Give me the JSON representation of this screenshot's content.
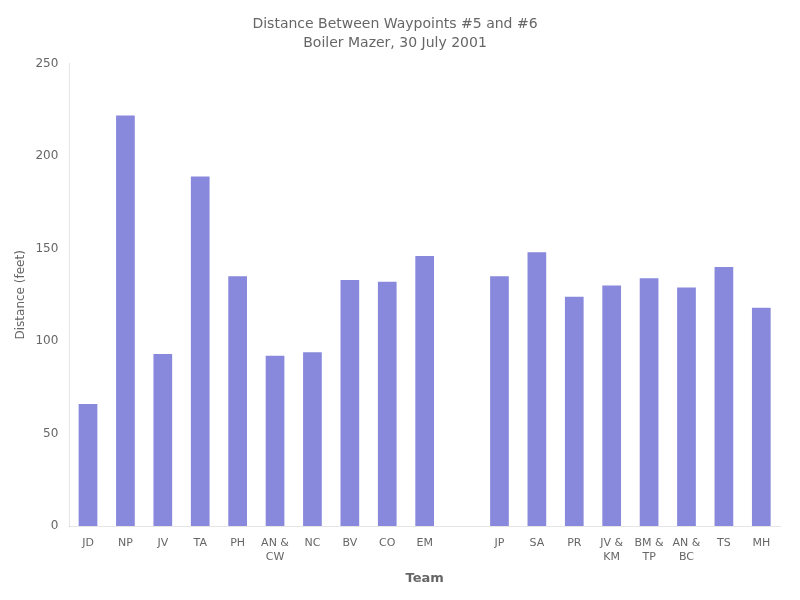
{
  "chart_data": {
    "type": "bar",
    "title": "Distance Between Waypoints #5 and #6",
    "subtitle": "Boiler Mazer, 30 July 2001",
    "x_label": "Team",
    "y_label": "Distance (feet)",
    "categories": [
      "JD",
      "NP",
      "JV",
      "TA",
      "PH",
      "AN &\nCW",
      "NC",
      "BV",
      "CO",
      "EM",
      null,
      "JP",
      "SA",
      "PR",
      "JV &\nKM",
      "BM &\nTP",
      "AN &\nBC",
      "TS",
      "MH"
    ],
    "values": [
      66,
      222,
      93,
      189,
      135,
      92,
      94,
      133,
      132,
      146,
      null,
      135,
      148,
      124,
      130,
      134,
      129,
      140,
      118
    ],
    "color": "#8888dd",
    "ylim": [
      0,
      250
    ],
    "yticks": [
      0,
      50,
      100,
      150,
      200,
      250
    ],
    "grid": false
  }
}
